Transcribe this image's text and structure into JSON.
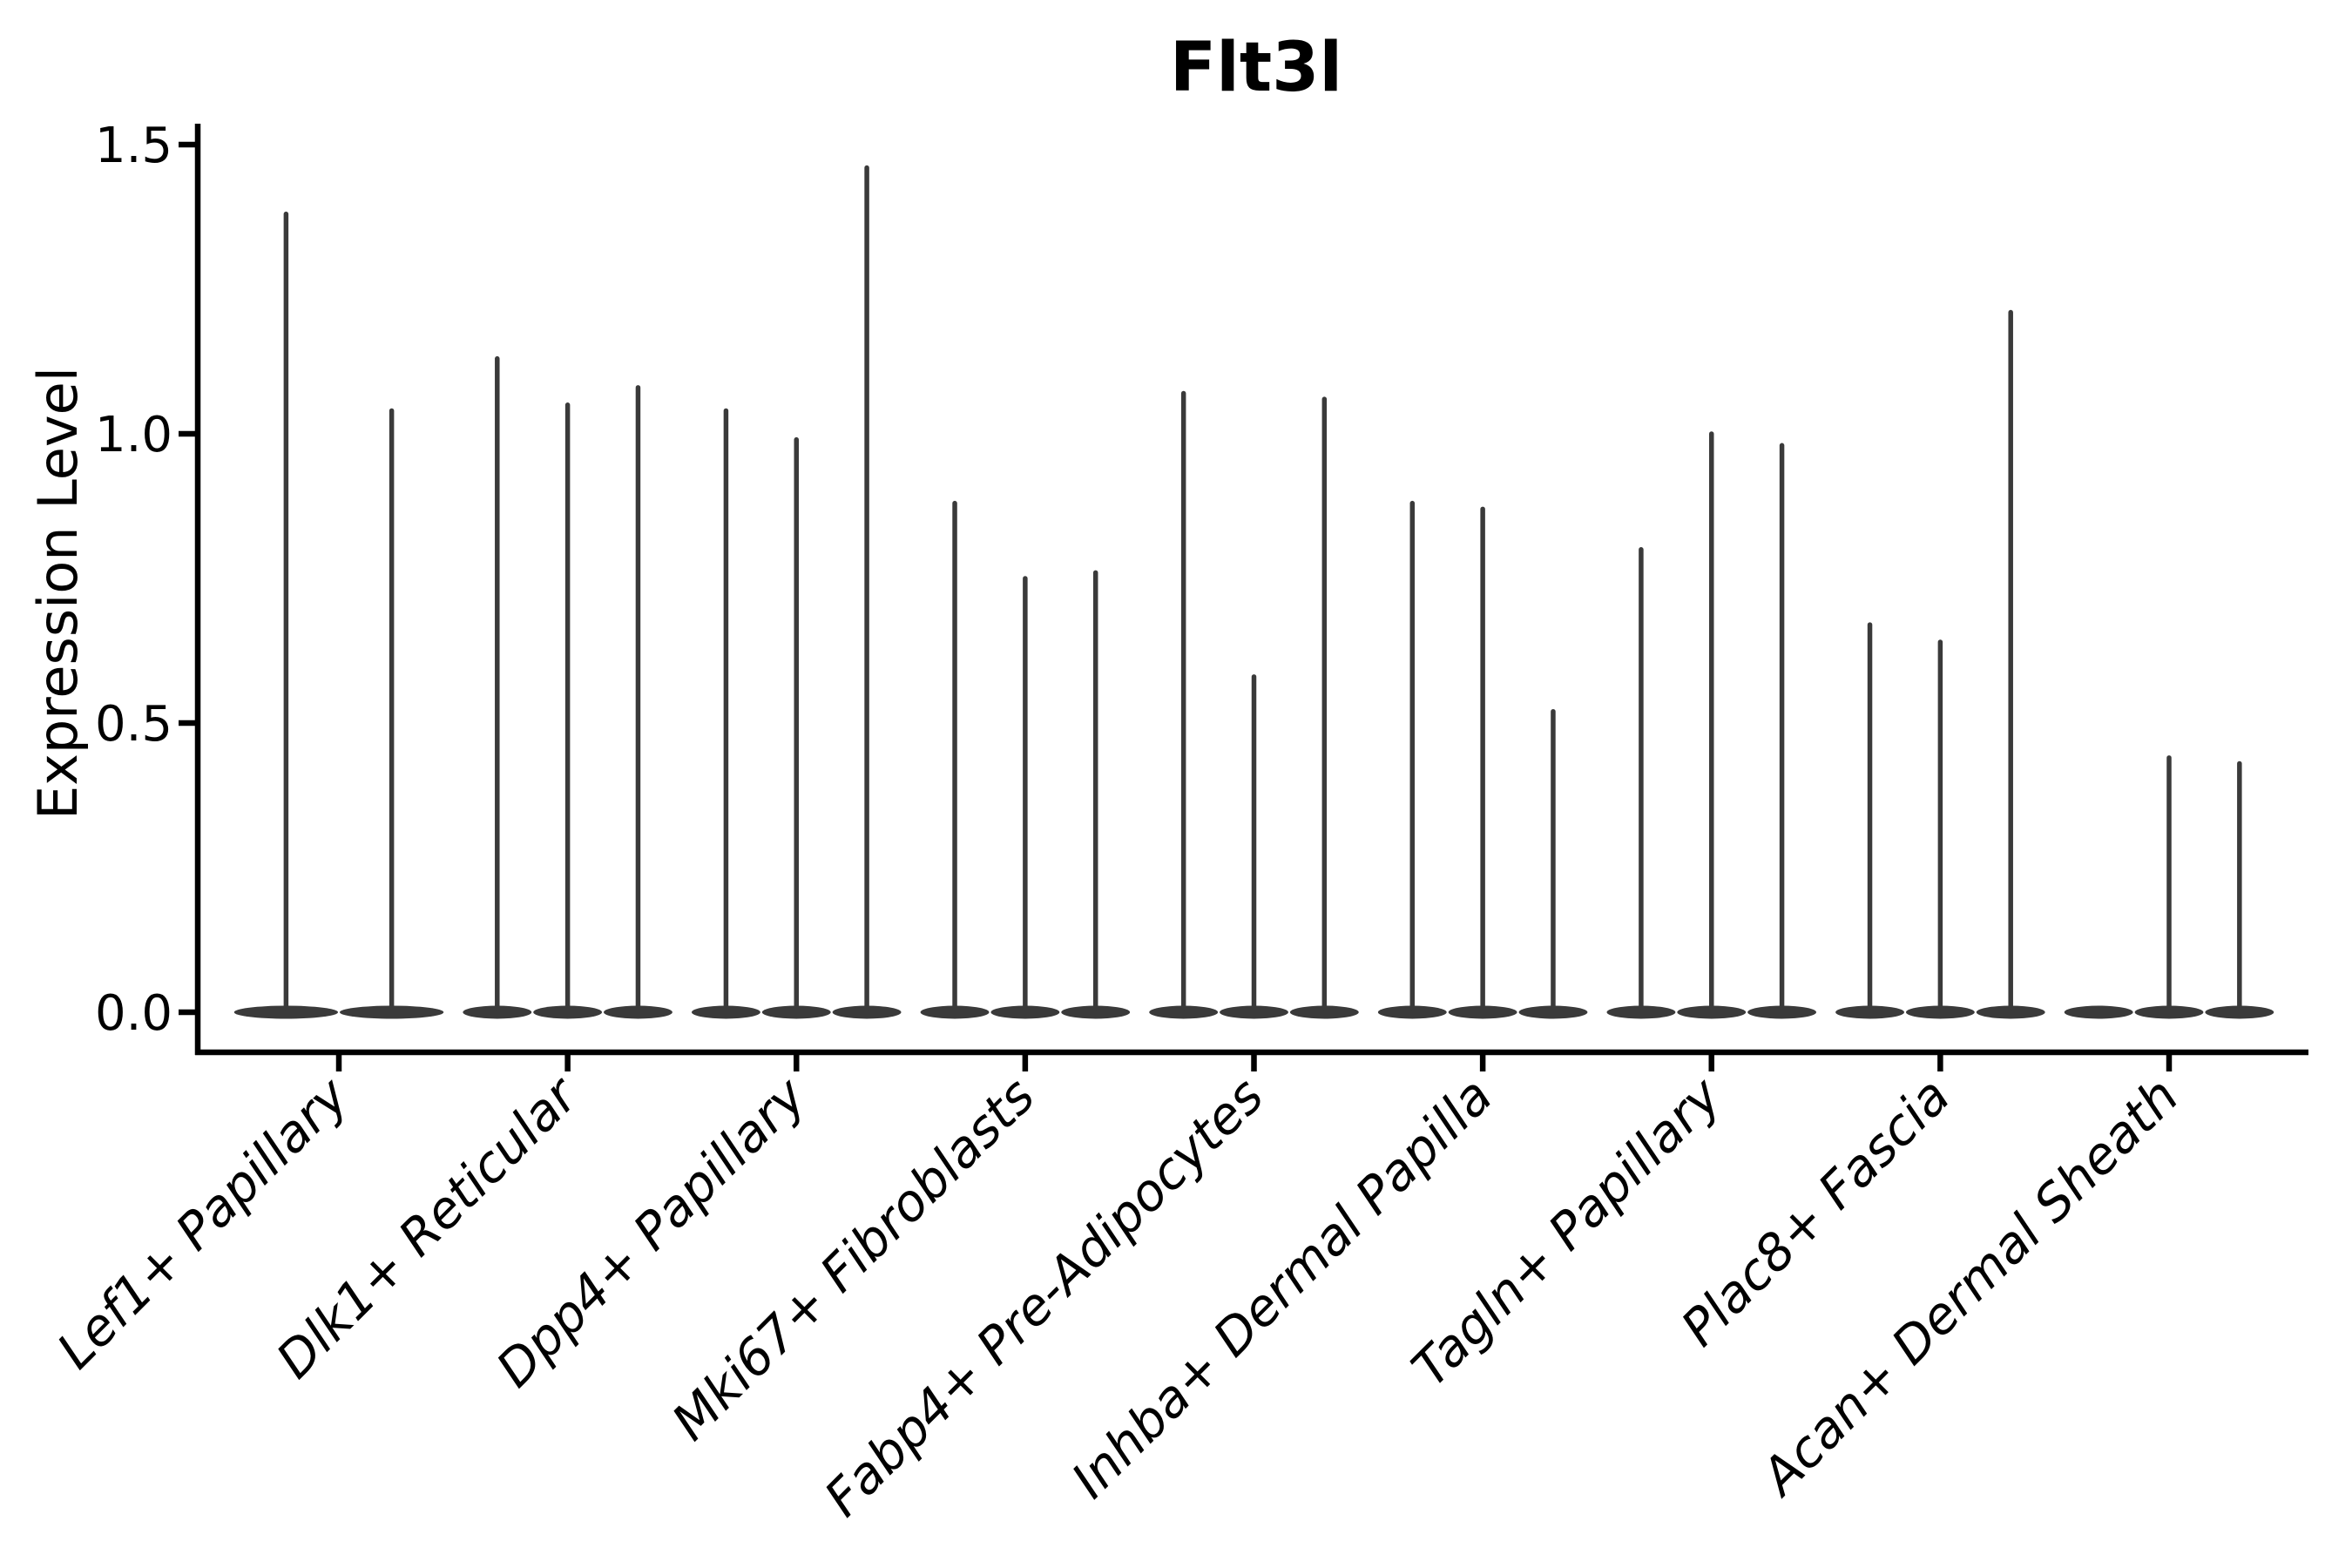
{
  "chart_data": {
    "type": "violin",
    "title": "Flt3l",
    "ylabel": "Expression Level",
    "xlabel": "",
    "yticks": [
      0.0,
      0.5,
      1.0,
      1.5
    ],
    "ytick_labels": [
      "0.0",
      "0.5",
      "1.0",
      "1.5"
    ],
    "ylim": [
      -0.07,
      1.54
    ],
    "grid": false,
    "legend_position": "none",
    "categories": [
      "Lef1+ Papillary",
      "Dlk1+ Reticular",
      "Dpp4+ Papillary",
      "Mki67+ Fibroblasts",
      "Fabp4+ Pre-Adipocytes",
      "Inhba+ Dermal Papilla",
      "Tagln+ Papillary",
      "Plac8+ Fascia",
      "Acan+ Dermal Sheath"
    ],
    "groups": [
      {
        "category": "Lef1+ Papillary",
        "violin_peaks": [
          1.38,
          1.04
        ]
      },
      {
        "category": "Dlk1+ Reticular",
        "violin_peaks": [
          1.13,
          1.05,
          1.08
        ]
      },
      {
        "category": "Dpp4+ Papillary",
        "violin_peaks": [
          1.04,
          0.99,
          1.46
        ]
      },
      {
        "category": "Mki67+ Fibroblasts",
        "violin_peaks": [
          0.88,
          0.75,
          0.76
        ]
      },
      {
        "category": "Fabp4+ Pre-Adipocytes",
        "violin_peaks": [
          1.07,
          0.58,
          1.06
        ]
      },
      {
        "category": "Inhba+ Dermal Papilla",
        "violin_peaks": [
          0.88,
          0.87,
          0.52
        ]
      },
      {
        "category": "Tagln+ Papillary",
        "violin_peaks": [
          0.8,
          1.0,
          0.98
        ]
      },
      {
        "category": "Plac8+ Fascia",
        "violin_peaks": [
          0.67,
          0.64,
          1.21
        ]
      },
      {
        "category": "Acan+ Dermal Sheath",
        "violin_peaks": [
          0,
          0.44,
          0.43
        ]
      }
    ],
    "colors": {
      "violin": "#3a3a3a",
      "axis": "#000000",
      "background": "#ffffff"
    }
  }
}
